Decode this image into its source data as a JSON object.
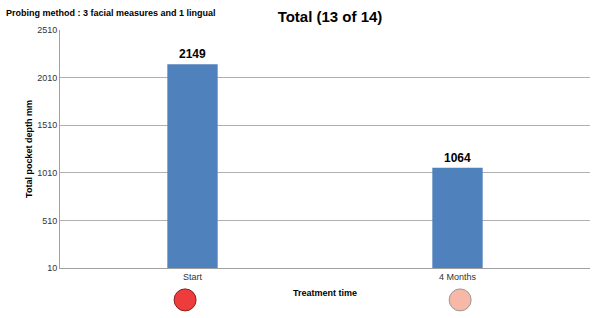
{
  "chart_data": {
    "type": "bar",
    "title": "Total (13 of 14)",
    "annotations": [
      "Probing method : 3 facial measures and 1 lingual"
    ],
    "x_label": "Treatment time",
    "y_label": "Total pocket depth mm",
    "categories": [
      "Start",
      "4 Months"
    ],
    "values": [
      2149,
      1064
    ],
    "color": "#4f81bd",
    "ylim": [
      10,
      2510
    ],
    "yticks": [
      10,
      510,
      1010,
      1510,
      2010,
      2510
    ],
    "grid": true,
    "data_labels": true
  }
}
